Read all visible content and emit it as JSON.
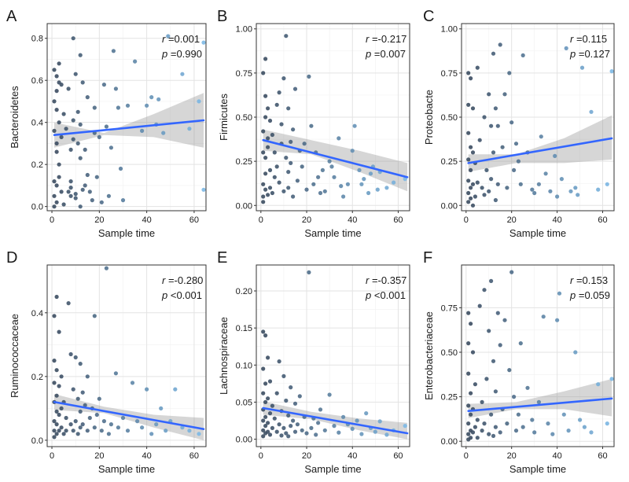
{
  "chart_data": [
    {
      "panel": "A",
      "type": "scatter",
      "xlabel": "Sample time",
      "ylabel": "Bacteroidetes",
      "xlim": [
        -2,
        65
      ],
      "ylim": [
        -0.02,
        0.87
      ],
      "xticks": [
        0,
        20,
        40,
        60
      ],
      "yticks": [
        0.0,
        0.2,
        0.4,
        0.6,
        0.8
      ],
      "ytick_labels": [
        "0.0",
        "0.2",
        "0.4",
        "0.6",
        "0.8"
      ],
      "stats": {
        "r_label": "r",
        "r_value": "=0.001",
        "p_label": "p",
        "p_value": "=0.990"
      },
      "trend": {
        "x": [
          1,
          64
        ],
        "y": [
          0.34,
          0.41
        ]
      },
      "band": {
        "upper": [
          0.4,
          0.35,
          0.44,
          0.54
        ],
        "lower": [
          0.28,
          0.34,
          0.33,
          0.28
        ]
      },
      "points": {
        "x": [
          1,
          1,
          1,
          1,
          1,
          1,
          2,
          2,
          2,
          2,
          2,
          2,
          2,
          3,
          3,
          3,
          3,
          3,
          4,
          4,
          4,
          5,
          5,
          6,
          7,
          7,
          8,
          8,
          8,
          8,
          9,
          9,
          9,
          10,
          10,
          10,
          11,
          11,
          12,
          12,
          12,
          12,
          13,
          13,
          14,
          14,
          15,
          15,
          16,
          17,
          18,
          18,
          19,
          20,
          21,
          22,
          23,
          24,
          25,
          26,
          27,
          28,
          29,
          30,
          32,
          35,
          38,
          40,
          42,
          44,
          45,
          47,
          49,
          55,
          58,
          62,
          64,
          64
        ],
        "y": [
          0.65,
          0.5,
          0.36,
          0.12,
          0.05,
          0.0,
          0.62,
          0.55,
          0.3,
          0.1,
          0.02,
          0.26,
          0.46,
          0.68,
          0.59,
          0.4,
          0.2,
          0.14,
          0.58,
          0.33,
          0.07,
          0.01,
          0.44,
          0.37,
          0.07,
          0.56,
          0.12,
          0.09,
          0.27,
          0.05,
          0.8,
          0.32,
          0.41,
          0.63,
          0.06,
          0.04,
          0.45,
          0.3,
          0.72,
          0.23,
          0.0,
          0.39,
          0.08,
          0.59,
          0.27,
          0.1,
          0.52,
          0.15,
          0.07,
          0.03,
          0.47,
          0.35,
          0.14,
          0.33,
          0.02,
          0.58,
          0.38,
          0.05,
          0.28,
          0.74,
          0.56,
          0.47,
          0.18,
          0.03,
          0.48,
          0.69,
          0.36,
          0.48,
          0.52,
          0.39,
          0.51,
          0.35,
          0.81,
          0.63,
          0.37,
          0.5,
          0.78,
          0.08
        ]
      }
    },
    {
      "panel": "B",
      "type": "scatter",
      "xlabel": "Sample time",
      "ylabel": "Firmicutes",
      "xlim": [
        -2,
        65
      ],
      "ylim": [
        -0.03,
        1.03
      ],
      "xticks": [
        0,
        20,
        40,
        60
      ],
      "yticks": [
        0.0,
        0.25,
        0.5,
        0.75,
        1.0
      ],
      "ytick_labels": [
        "0.00",
        "0.25",
        "0.50",
        "0.75",
        "1.00"
      ],
      "stats": {
        "r_label": "r",
        "r_value": "=-0.217",
        "p_label": "p",
        "p_value": "=0.007"
      },
      "trend": {
        "x": [
          1,
          64
        ],
        "y": [
          0.37,
          0.16
        ]
      },
      "band": {
        "upper": [
          0.43,
          0.37,
          0.31,
          0.24
        ],
        "lower": [
          0.31,
          0.29,
          0.19,
          0.08
        ]
      },
      "points": {
        "x": [
          1,
          1,
          1,
          1,
          1,
          1,
          2,
          2,
          2,
          2,
          2,
          2,
          3,
          3,
          3,
          3,
          4,
          4,
          4,
          5,
          5,
          6,
          6,
          7,
          7,
          8,
          8,
          9,
          9,
          10,
          10,
          11,
          11,
          12,
          12,
          12,
          13,
          13,
          14,
          14,
          15,
          16,
          17,
          18,
          19,
          20,
          21,
          22,
          23,
          24,
          25,
          26,
          27,
          28,
          30,
          31,
          32,
          34,
          35,
          36,
          38,
          40,
          41,
          43,
          44,
          45,
          47,
          48,
          49,
          51,
          52,
          55,
          58,
          63
        ],
        "y": [
          0.75,
          0.42,
          0.3,
          0.12,
          0.05,
          0.02,
          0.83,
          0.62,
          0.5,
          0.27,
          0.18,
          0.09,
          0.55,
          0.38,
          0.33,
          0.06,
          0.2,
          0.48,
          0.1,
          0.07,
          0.4,
          0.3,
          0.16,
          0.22,
          0.57,
          0.64,
          0.13,
          0.46,
          0.35,
          0.72,
          0.08,
          0.96,
          0.27,
          0.55,
          0.19,
          0.1,
          0.36,
          0.24,
          0.43,
          0.05,
          0.66,
          0.14,
          0.31,
          0.22,
          0.35,
          0.09,
          0.73,
          0.45,
          0.12,
          0.3,
          0.16,
          0.07,
          0.2,
          0.08,
          0.25,
          0.22,
          0.16,
          0.38,
          0.11,
          0.05,
          0.12,
          0.31,
          0.45,
          0.2,
          0.12,
          0.15,
          0.07,
          0.18,
          0.22,
          0.09,
          0.19,
          0.1,
          0.13,
          0.15
        ]
      }
    },
    {
      "panel": "C",
      "type": "scatter",
      "xlabel": "Sample time",
      "ylabel": "Proteobacte",
      "xlim": [
        -2,
        65
      ],
      "ylim": [
        -0.03,
        1.03
      ],
      "xticks": [
        0,
        20,
        40,
        60
      ],
      "yticks": [
        0.0,
        0.25,
        0.5,
        0.75,
        1.0
      ],
      "ytick_labels": [
        "0.00",
        "0.25",
        "0.50",
        "0.75",
        "1.00"
      ],
      "stats": {
        "r_label": "r",
        "r_value": "=0.115",
        "p_label": "p",
        "p_value": "=0.127"
      },
      "trend": {
        "x": [
          1,
          64
        ],
        "y": [
          0.24,
          0.38
        ]
      },
      "band": {
        "upper": [
          0.29,
          0.29,
          0.38,
          0.51
        ],
        "lower": [
          0.19,
          0.24,
          0.24,
          0.26
        ]
      },
      "points": {
        "x": [
          1,
          1,
          1,
          1,
          1,
          1,
          1,
          2,
          2,
          2,
          2,
          2,
          3,
          3,
          3,
          3,
          4,
          4,
          5,
          5,
          6,
          7,
          8,
          8,
          9,
          10,
          10,
          11,
          11,
          12,
          12,
          13,
          13,
          14,
          14,
          15,
          16,
          17,
          18,
          19,
          20,
          21,
          22,
          23,
          24,
          25,
          27,
          29,
          30,
          32,
          33,
          35,
          37,
          39,
          40,
          42,
          44,
          46,
          48,
          49,
          51,
          55,
          58,
          62,
          64
        ],
        "y": [
          0.75,
          0.57,
          0.41,
          0.26,
          0.14,
          0.07,
          0.02,
          0.72,
          0.33,
          0.2,
          0.1,
          0.04,
          0.55,
          0.3,
          0.12,
          0.0,
          0.24,
          0.05,
          0.78,
          0.13,
          0.37,
          0.1,
          0.5,
          0.06,
          0.2,
          0.63,
          0.08,
          0.45,
          0.15,
          0.86,
          0.3,
          0.55,
          0.03,
          0.45,
          0.12,
          0.91,
          0.33,
          0.63,
          0.1,
          0.75,
          0.47,
          0.2,
          0.35,
          0.25,
          0.12,
          0.85,
          0.3,
          0.09,
          0.07,
          0.12,
          0.39,
          0.18,
          0.08,
          0.28,
          0.05,
          0.15,
          0.89,
          0.08,
          0.1,
          0.06,
          0.78,
          0.53,
          0.09,
          0.12,
          0.76
        ]
      }
    },
    {
      "panel": "D",
      "type": "scatter",
      "xlabel": "Sample time",
      "ylabel": "Ruminococcaceae",
      "xlim": [
        -2,
        65
      ],
      "ylim": [
        -0.02,
        0.55
      ],
      "xticks": [
        0,
        20,
        40,
        60
      ],
      "yticks": [
        0.0,
        0.2,
        0.4
      ],
      "ytick_labels": [
        "0.0",
        "0.2",
        "0.4"
      ],
      "stats": {
        "r_label": "r",
        "r_value": "=-0.280",
        "p_label": "p",
        "p_value": "<0.001"
      },
      "trend": {
        "x": [
          1,
          64
        ],
        "y": [
          0.12,
          0.035
        ]
      },
      "band": {
        "upper": [
          0.145,
          0.105,
          0.08,
          0.07
        ],
        "lower": [
          0.095,
          0.085,
          0.04,
          0.0
        ]
      },
      "points": {
        "x": [
          1,
          1,
          1,
          1,
          1,
          1,
          1,
          2,
          2,
          2,
          2,
          2,
          2,
          3,
          3,
          3,
          3,
          4,
          4,
          4,
          5,
          5,
          6,
          6,
          7,
          8,
          8,
          9,
          9,
          10,
          10,
          11,
          11,
          12,
          12,
          12,
          13,
          13,
          14,
          15,
          15,
          16,
          17,
          18,
          18,
          19,
          20,
          21,
          22,
          23,
          24,
          25,
          27,
          28,
          30,
          32,
          34,
          36,
          38,
          40,
          42,
          44,
          46,
          48,
          50,
          52,
          55,
          58,
          62
        ],
        "y": [
          0.39,
          0.25,
          0.18,
          0.12,
          0.06,
          0.03,
          0.01,
          0.45,
          0.22,
          0.14,
          0.09,
          0.05,
          0.02,
          0.34,
          0.17,
          0.08,
          0.03,
          0.2,
          0.1,
          0.04,
          0.12,
          0.02,
          0.07,
          0.03,
          0.43,
          0.05,
          0.27,
          0.16,
          0.03,
          0.26,
          0.06,
          0.13,
          0.02,
          0.24,
          0.09,
          0.04,
          0.15,
          0.05,
          0.11,
          0.2,
          0.03,
          0.07,
          0.1,
          0.39,
          0.04,
          0.08,
          0.13,
          0.03,
          0.06,
          0.54,
          0.02,
          0.05,
          0.21,
          0.04,
          0.07,
          0.03,
          0.18,
          0.06,
          0.04,
          0.16,
          0.02,
          0.05,
          0.1,
          0.03,
          0.06,
          0.16,
          0.04,
          0.03,
          0.02
        ]
      }
    },
    {
      "panel": "E",
      "type": "scatter",
      "xlabel": "Sample time",
      "ylabel": "Lachnospiraceae",
      "xlim": [
        -2,
        65
      ],
      "ylim": [
        -0.01,
        0.235
      ],
      "xticks": [
        0,
        20,
        40,
        60
      ],
      "yticks": [
        0.0,
        0.05,
        0.1,
        0.15,
        0.2
      ],
      "ytick_labels": [
        "0.00",
        "0.05",
        "0.10",
        "0.15",
        "0.20"
      ],
      "stats": {
        "r_label": "r",
        "r_value": "=-0.357",
        "p_label": "p",
        "p_value": "<0.001"
      },
      "trend": {
        "x": [
          1,
          64
        ],
        "y": [
          0.042,
          0.008
        ]
      },
      "band": {
        "upper": [
          0.051,
          0.037,
          0.028,
          0.022
        ],
        "lower": [
          0.033,
          0.027,
          0.012,
          0.0
        ]
      },
      "points": {
        "x": [
          1,
          1,
          1,
          1,
          1,
          1,
          1,
          2,
          2,
          2,
          2,
          2,
          2,
          3,
          3,
          3,
          3,
          4,
          4,
          4,
          5,
          5,
          6,
          7,
          7,
          8,
          8,
          9,
          9,
          10,
          10,
          11,
          11,
          12,
          12,
          13,
          13,
          14,
          15,
          15,
          16,
          17,
          18,
          19,
          20,
          21,
          22,
          23,
          24,
          25,
          26,
          28,
          30,
          32,
          34,
          36,
          38,
          40,
          42,
          44,
          46,
          48,
          50,
          52,
          55,
          58,
          63
        ],
        "y": [
          0.145,
          0.095,
          0.062,
          0.04,
          0.025,
          0.012,
          0.004,
          0.14,
          0.075,
          0.05,
          0.03,
          0.018,
          0.008,
          0.11,
          0.055,
          0.022,
          0.01,
          0.078,
          0.035,
          0.006,
          0.045,
          0.015,
          0.028,
          0.062,
          0.01,
          0.105,
          0.02,
          0.038,
          0.005,
          0.085,
          0.015,
          0.052,
          0.008,
          0.032,
          0.004,
          0.07,
          0.018,
          0.025,
          0.048,
          0.01,
          0.02,
          0.058,
          0.012,
          0.03,
          0.008,
          0.225,
          0.015,
          0.028,
          0.006,
          0.022,
          0.04,
          0.012,
          0.06,
          0.018,
          0.009,
          0.03,
          0.02,
          0.014,
          0.025,
          0.007,
          0.035,
          0.015,
          0.01,
          0.024,
          0.006,
          0.012,
          0.018
        ]
      }
    },
    {
      "panel": "F",
      "type": "scatter",
      "xlabel": "Sample time",
      "ylabel": "Enterobacteriaceae",
      "xlim": [
        -2,
        65
      ],
      "ylim": [
        -0.03,
        0.99
      ],
      "xticks": [
        0,
        20,
        40,
        60
      ],
      "yticks": [
        0.0,
        0.25,
        0.5,
        0.75
      ],
      "ytick_labels": [
        "0.00",
        "0.25",
        "0.50",
        "0.75"
      ],
      "stats": {
        "r_label": "r",
        "r_value": "=0.153",
        "p_label": "p",
        "p_value": "=0.059"
      },
      "trend": {
        "x": [
          1,
          64
        ],
        "y": [
          0.17,
          0.24
        ]
      },
      "band": {
        "upper": [
          0.21,
          0.22,
          0.28,
          0.35
        ],
        "lower": [
          0.13,
          0.18,
          0.18,
          0.14
        ]
      },
      "points": {
        "x": [
          1,
          1,
          1,
          1,
          1,
          1,
          1,
          2,
          2,
          2,
          2,
          2,
          3,
          3,
          3,
          4,
          4,
          5,
          5,
          6,
          7,
          7,
          8,
          8,
          9,
          10,
          10,
          11,
          11,
          12,
          12,
          13,
          13,
          14,
          15,
          15,
          16,
          17,
          18,
          19,
          20,
          21,
          22,
          23,
          24,
          25,
          27,
          29,
          30,
          32,
          34,
          36,
          38,
          40,
          41,
          43,
          45,
          48,
          50,
          52,
          55,
          58,
          62,
          64
        ],
        "y": [
          0.72,
          0.55,
          0.38,
          0.2,
          0.1,
          0.04,
          0.01,
          0.66,
          0.27,
          0.15,
          0.06,
          0.02,
          0.5,
          0.18,
          0.05,
          0.32,
          0.08,
          0.12,
          0.02,
          0.76,
          0.22,
          0.06,
          0.85,
          0.1,
          0.35,
          0.62,
          0.04,
          0.9,
          0.15,
          0.45,
          0.03,
          0.28,
          0.08,
          0.72,
          0.54,
          0.05,
          0.18,
          0.68,
          0.1,
          0.4,
          0.95,
          0.25,
          0.06,
          0.15,
          0.55,
          0.08,
          0.3,
          0.12,
          0.05,
          0.22,
          0.7,
          0.1,
          0.04,
          0.68,
          0.83,
          0.15,
          0.06,
          0.5,
          0.12,
          0.08,
          0.05,
          0.32,
          0.1,
          0.35
        ]
      }
    }
  ]
}
